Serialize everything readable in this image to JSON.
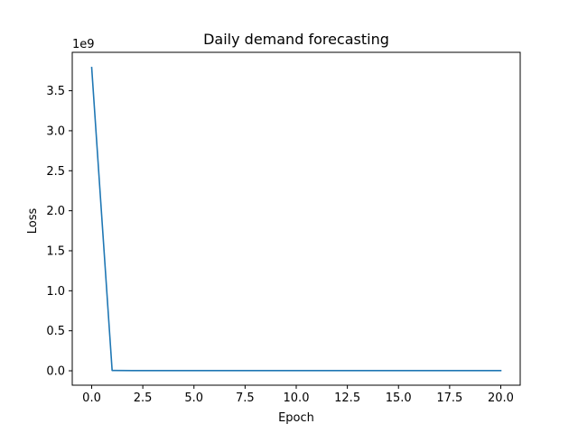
{
  "chart_data": {
    "type": "line",
    "title": "Daily demand forecasting",
    "xlabel": "Epoch",
    "ylabel": "Loss",
    "y_offset_label": "1e9",
    "xlim": [
      -0.95,
      20.95
    ],
    "ylim": [
      -0.18,
      3.98
    ],
    "x_ticks": [
      0,
      2.5,
      5,
      7.5,
      10,
      12.5,
      15,
      17.5,
      20
    ],
    "x_tick_labels": [
      "0.0",
      "2.5",
      "5.0",
      "7.5",
      "10.0",
      "12.5",
      "15.0",
      "17.5",
      "20.0"
    ],
    "y_ticks": [
      0,
      0.5,
      1.0,
      1.5,
      2.0,
      2.5,
      3.0,
      3.5
    ],
    "y_tick_labels": [
      "0.0",
      "0.5",
      "1.0",
      "1.5",
      "2.0",
      "2.5",
      "3.0",
      "3.5"
    ],
    "grid": false,
    "line_color": "#1f77b4",
    "series": [
      {
        "x": [
          0,
          1,
          2,
          3,
          4,
          5,
          6,
          7,
          8,
          9,
          10,
          11,
          12,
          13,
          14,
          15,
          16,
          17,
          18,
          19,
          20
        ],
        "values": [
          3.79,
          0.004,
          0.002,
          0.002,
          0.002,
          0.002,
          0.002,
          0.002,
          0.002,
          0.002,
          0.002,
          0.002,
          0.002,
          0.002,
          0.002,
          0.002,
          0.002,
          0.002,
          0.002,
          0.002,
          0.002
        ]
      }
    ]
  }
}
